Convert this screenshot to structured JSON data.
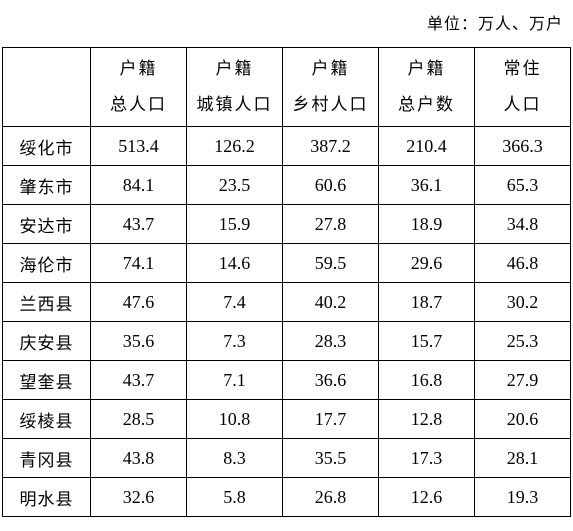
{
  "unit_label": "单位：万人、万户",
  "table": {
    "corner": "",
    "headers": [
      {
        "line1": "户籍",
        "line2": "总人口"
      },
      {
        "line1": "户籍",
        "line2": "城镇人口"
      },
      {
        "line1": "户籍",
        "line2": "乡村人口"
      },
      {
        "line1": "户籍",
        "line2": "总户数"
      },
      {
        "line1": "常住",
        "line2": "人口"
      }
    ],
    "rows": [
      {
        "name": "绥化市",
        "values": [
          "513.4",
          "126.2",
          "387.2",
          "210.4",
          "366.3"
        ]
      },
      {
        "name": "肇东市",
        "values": [
          "84.1",
          "23.5",
          "60.6",
          "36.1",
          "65.3"
        ]
      },
      {
        "name": "安达市",
        "values": [
          "43.7",
          "15.9",
          "27.8",
          "18.9",
          "34.8"
        ]
      },
      {
        "name": "海伦市",
        "values": [
          "74.1",
          "14.6",
          "59.5",
          "29.6",
          "46.8"
        ]
      },
      {
        "name": "兰西县",
        "values": [
          "47.6",
          "7.4",
          "40.2",
          "18.7",
          "30.2"
        ]
      },
      {
        "name": "庆安县",
        "values": [
          "35.6",
          "7.3",
          "28.3",
          "15.7",
          "25.3"
        ]
      },
      {
        "name": "望奎县",
        "values": [
          "43.7",
          "7.1",
          "36.6",
          "16.8",
          "27.9"
        ]
      },
      {
        "name": "绥棱县",
        "values": [
          "28.5",
          "10.8",
          "17.7",
          "12.8",
          "20.6"
        ]
      },
      {
        "name": "青冈县",
        "values": [
          "43.8",
          "8.3",
          "35.5",
          "17.3",
          "28.1"
        ]
      },
      {
        "name": "明水县",
        "values": [
          "32.6",
          "5.8",
          "26.8",
          "12.6",
          "19.3"
        ]
      }
    ]
  }
}
